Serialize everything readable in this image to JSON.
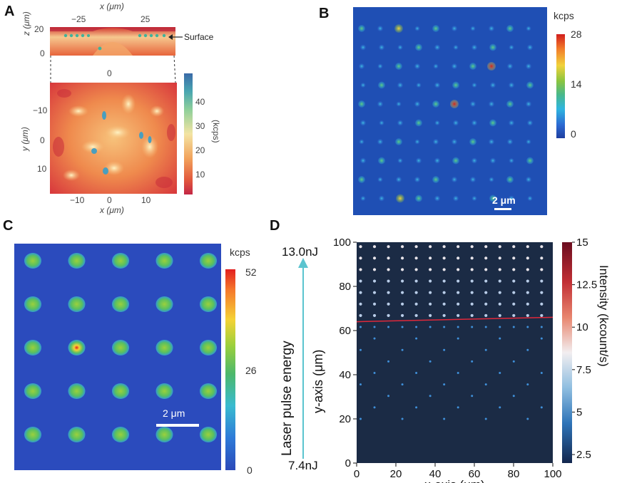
{
  "panels": {
    "A": {
      "letter": "A",
      "top_x_label": "x (μm)",
      "top_x_ticks": [
        "−25",
        "25"
      ],
      "top_z_label": "z (μm)",
      "top_z_ticks": [
        "20",
        "0"
      ],
      "surface_label": "Surface",
      "main_x_top_tick": "0",
      "main_x_label": "x (μm)",
      "main_x_ticks": [
        "−10",
        "0",
        "10"
      ],
      "main_y_label": "y (μm)",
      "main_y_ticks": [
        "−10",
        "0",
        "10"
      ],
      "cbar_label": "(kcps)",
      "cbar_ticks": [
        "40",
        "30",
        "20",
        "10"
      ]
    },
    "B": {
      "letter": "B",
      "cbar_title": "kcps",
      "cbar_ticks": [
        "28",
        "14",
        "0"
      ],
      "scale_bar": "2 μm"
    },
    "C": {
      "letter": "C",
      "cbar_title": "kcps",
      "cbar_ticks": [
        "52",
        "26",
        "0"
      ],
      "scale_bar": "2 μm"
    },
    "D": {
      "letter": "D",
      "energy_top": "13.0nJ",
      "energy_bottom": "7.4nJ",
      "energy_label": "Laser pulse energy",
      "y_label": "y-axis (μm)",
      "x_label": "x-axis (μm)",
      "x_ticks": [
        "0",
        "20",
        "40",
        "60",
        "80",
        "100"
      ],
      "y_ticks": [
        "100",
        "80",
        "60",
        "40",
        "20",
        "0"
      ],
      "cbar_label": "Intensity (kcount/s)",
      "cbar_ticks": [
        "15",
        "12.5",
        "10",
        "7.5",
        "5",
        "2.5"
      ]
    }
  },
  "colors": {
    "jet_bg": "#1f4fb4",
    "dark_bg": "#1b2b45",
    "threshold_line": "#e0283a",
    "arrow": "#5bc4cf"
  }
}
